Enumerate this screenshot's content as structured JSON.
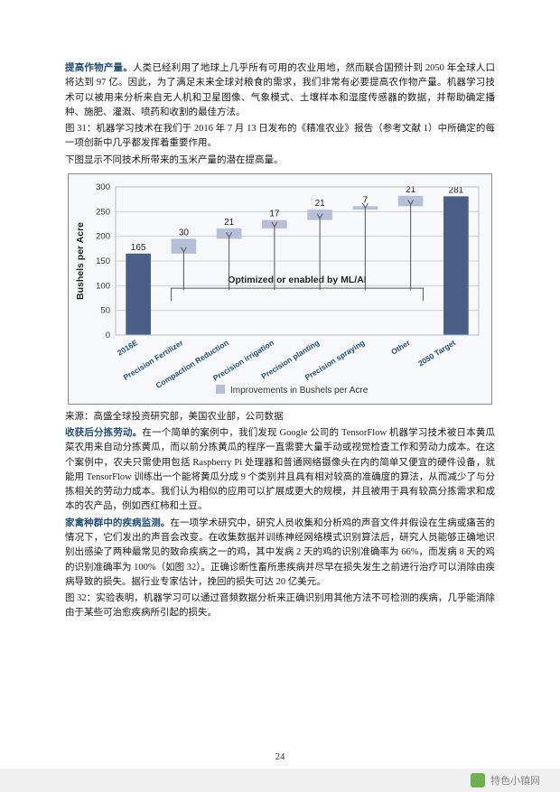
{
  "paragraphs": {
    "p1_lead": "提高作物产量。",
    "p1": "人类已经利用了地球上几乎所有可用的农业用地，然而联合国预计到 2050 年全球人口将达到 97 亿。因此，为了满足未来全球对粮食的需求，我们非常有必要提高农作物产量。机器学习技术可以被用来分析来自无人机和卫星图像、气象模式、土壤样本和湿度传感器的数据，并帮助确定播种、施肥、灌溉、喷药和收割的最佳方法。",
    "p2": "图 31：机器学习技术在我们于 2016 年 7 月 13 日发布的《精准农业》报告（参考文献 1）中所确定的每一项创新中几乎都发挥着重要作用。",
    "p3": "下图显示不同技术所带来的玉米产量的潜在提高量。",
    "source": "来源：高盛全球投资研究部，美国农业部，公司数据",
    "p4_lead": "收获后分拣劳动。",
    "p4": "在一个简单的案例中，我们发现 Google 公司的 TensorFlow 机器学习技术被日本黄瓜菜农用来自动分拣黄瓜，而以前分拣黄瓜的程序一直需要大量手动或视觉检查工作和劳动力成本。在这个案例中，农夫只需使用包括 Raspberry Pi 处理器和普通网络摄像头在内的简单又便宜的硬件设备，就能用 TensorFlow 训练出一个能将黄瓜分成 9 个类别并且具有相对较高的准确度的算法，从而减少了与分拣相关的劳动力成本。我们认为相似的应用可以扩展成更大的规模，并且被用于具有较高分拣需求和成本的农产品，例如西红柿和土豆。",
    "p5_lead": "家禽种群中的疾病监测。",
    "p5": "在一项学术研究中，研究人员收集和分析鸡的声音文件并假设在生病或痛苦的情况下，它们发出的声音会改变。在收集数据并训练神经网络模式识别算法后，研究人员能够正确地识别出感染了两种最常见的致命疾病之一的鸡，其中发病 2 天的鸡的识别准确率为 66%，而发病 8 天的鸡的识别准确率为 100%（如图 32）。正确诊断性畜所患疾病并尽早在损失发生之前进行治疗可以消除由疾病导致的损失。据行业专家估计，挽回的损失可达 20 亿美元。",
    "p6": "图 32：实验表明，机器学习可以通过音频数据分析来正确识别用其他方法不可检测的疾病，几乎能消除由于某些可治愈疾病所引起的损失。"
  },
  "chart": {
    "type": "waterfall-bar",
    "y_label": "Bushels per Acre",
    "y_ticks": [
      0,
      50,
      100,
      150,
      200,
      250,
      300
    ],
    "ylim": [
      0,
      300
    ],
    "grid_color": "#cfcfcf",
    "background": "#f7f8f9",
    "solid_color": "#4a5f87",
    "float_color": "#b5c0d8",
    "label_fontsize": 10,
    "axis_fontsize": 9.5,
    "callout_text": "Optimized or enabled by ML/AI",
    "legend_text": "Improvements in Bushels per Acre",
    "categories": [
      "2016E",
      "Precision Fertilizer",
      "Compaction Reduction",
      "Precision irrigation",
      "Precision planting",
      "Precision spraying",
      "Other",
      "2050 Target"
    ],
    "bars": [
      {
        "kind": "solid",
        "base": 0,
        "top": 165,
        "label": "165"
      },
      {
        "kind": "float",
        "base": 165,
        "top": 195,
        "label": "30"
      },
      {
        "kind": "float",
        "base": 195,
        "top": 216,
        "label": "21"
      },
      {
        "kind": "float",
        "base": 216,
        "top": 233,
        "label": "17"
      },
      {
        "kind": "float",
        "base": 233,
        "top": 254,
        "label": "21"
      },
      {
        "kind": "float",
        "base": 254,
        "top": 261,
        "label": "7"
      },
      {
        "kind": "float",
        "base": 261,
        "top": 282,
        "label": "21"
      },
      {
        "kind": "solid",
        "base": 0,
        "top": 281,
        "label": "281"
      }
    ]
  },
  "page_number": "24",
  "footer_brand": "特色小镇网"
}
